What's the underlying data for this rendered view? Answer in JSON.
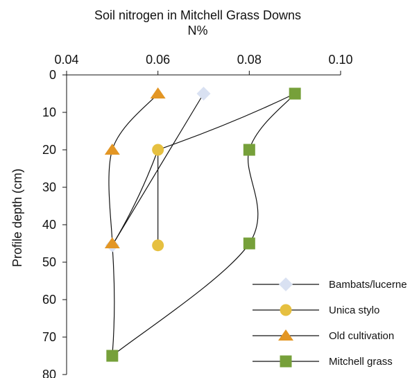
{
  "chart_data": {
    "type": "line",
    "title": "Soil nitrogen in Mitchell Grass Downs",
    "subtitle": "N%",
    "xlabel": "N%",
    "ylabel": "Profile depth (cm)",
    "xlim": [
      0.04,
      0.1
    ],
    "ylim": [
      0,
      80
    ],
    "x_ticks": [
      "0.04",
      "0.06",
      "0.08",
      "0.10"
    ],
    "y_ticks": [
      "0",
      "10",
      "20",
      "30",
      "40",
      "50",
      "60",
      "70",
      "80"
    ],
    "x_axis_position": "top",
    "y_axis_inverted": true,
    "grid": false,
    "legend_position": "bottom-right",
    "series": [
      {
        "name": "Bambats/lucerne",
        "marker": "diamond",
        "color": "#d9e1f2",
        "points": [
          {
            "x": 0.07,
            "y": 5
          },
          {
            "x": 0.05,
            "y": 45.5
          }
        ]
      },
      {
        "name": "Unica stylo",
        "marker": "circle",
        "color": "#e6c040",
        "points": [
          {
            "x": 0.06,
            "y": 20
          },
          {
            "x": 0.06,
            "y": 45.5
          }
        ]
      },
      {
        "name": "Old cultivation",
        "marker": "triangle",
        "color": "#e39624",
        "points": [
          {
            "x": 0.06,
            "y": 5
          },
          {
            "x": 0.05,
            "y": 20
          },
          {
            "x": 0.05,
            "y": 45
          }
        ]
      },
      {
        "name": "Mitchell grass",
        "marker": "square",
        "color": "#76a03a",
        "points": [
          {
            "x": 0.09,
            "y": 5
          },
          {
            "x": 0.08,
            "y": 20
          },
          {
            "x": 0.08,
            "y": 45
          },
          {
            "x": 0.05,
            "y": 75
          }
        ]
      }
    ],
    "connectors": [
      {
        "from": {
          "x": 0.09,
          "y": 5
        },
        "to": {
          "x": 0.06,
          "y": 20
        }
      },
      {
        "from": {
          "x": 0.06,
          "y": 20
        },
        "to": {
          "x": 0.05,
          "y": 45.5
        }
      },
      {
        "from": {
          "x": 0.05,
          "y": 45.5
        },
        "to": {
          "x": 0.05,
          "y": 75
        }
      }
    ],
    "line_color": "#111111"
  }
}
